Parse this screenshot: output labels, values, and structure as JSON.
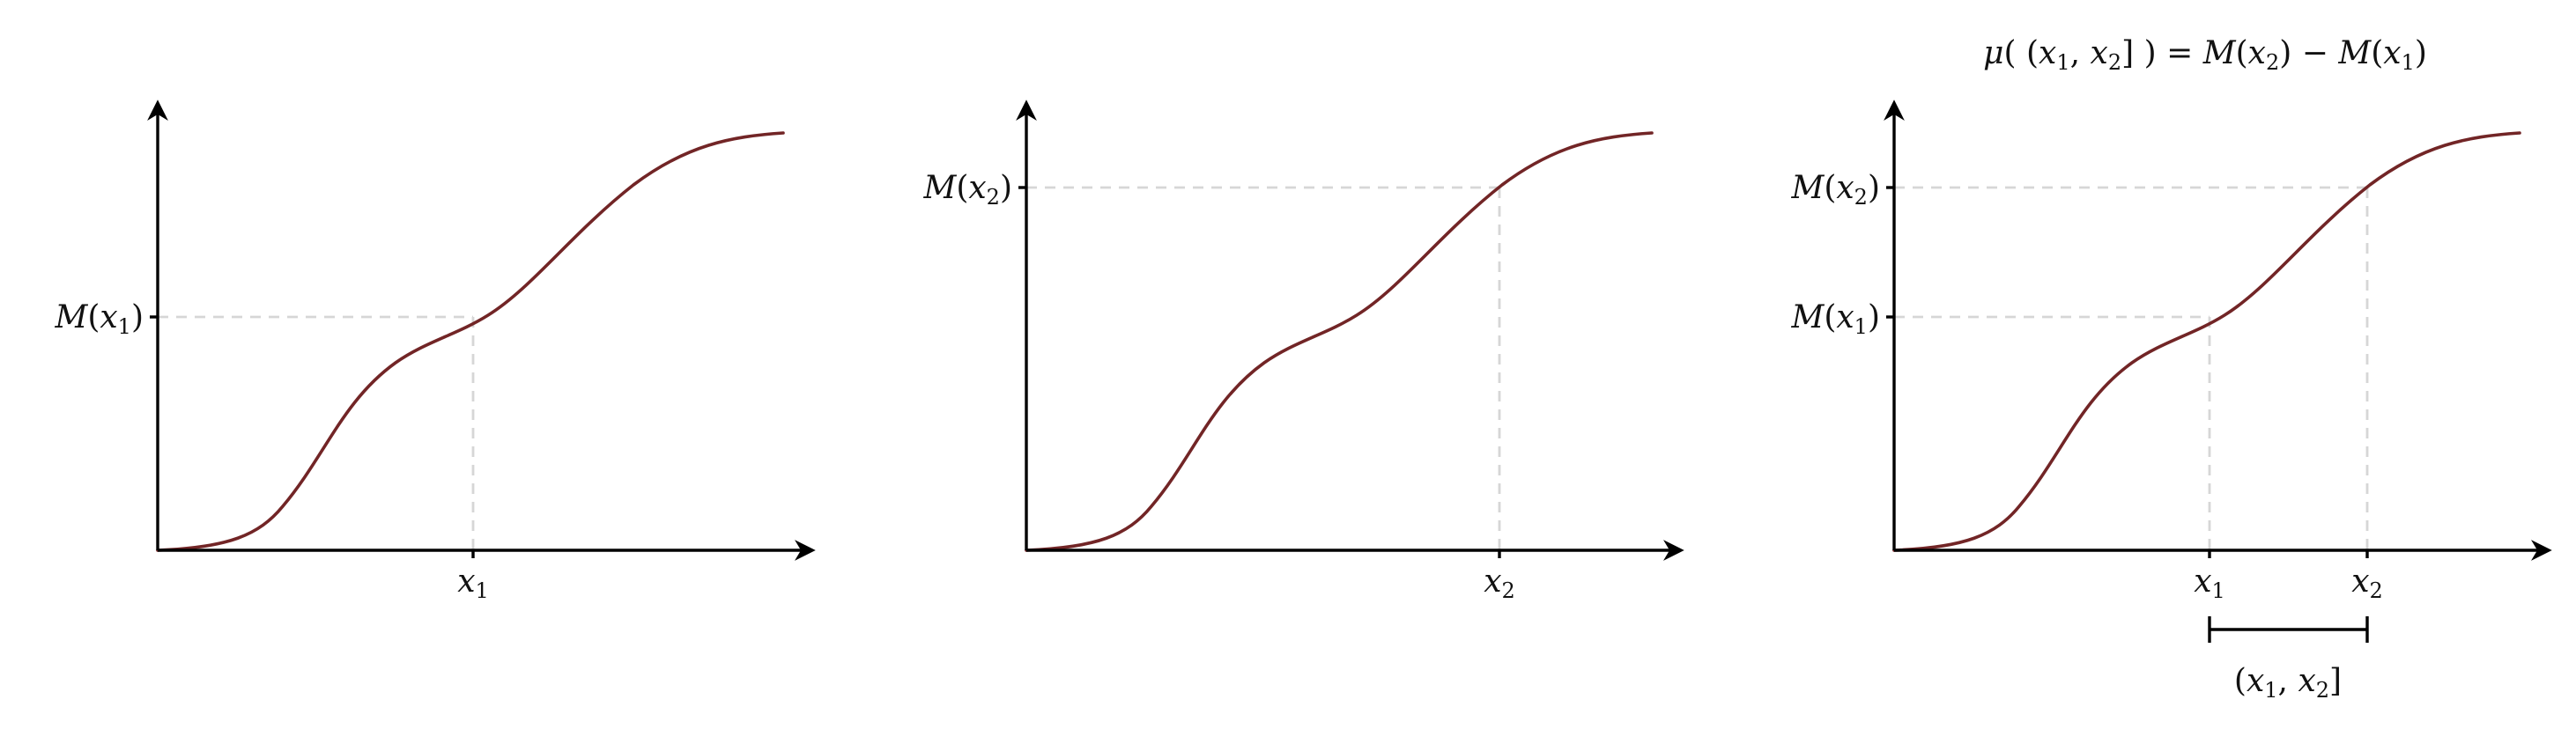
{
  "colors": {
    "curve": "#722526",
    "axis": "#000000",
    "guide": "#d6d6d6",
    "text": "#111111"
  },
  "icons": {
    "axis_arrow": "arrowhead"
  },
  "panels": [
    {
      "y_labels": [
        {
          "fn": "M",
          "sub": "1"
        }
      ],
      "x_labels": [
        {
          "var": "x",
          "sub": "1"
        }
      ]
    },
    {
      "y_labels": [
        {
          "fn": "M",
          "sub": "2"
        }
      ],
      "x_labels": [
        {
          "var": "x",
          "sub": "2"
        }
      ]
    },
    {
      "title": {
        "mu": "μ",
        "x": "x",
        "sub1": "1",
        "sub2": "2",
        "M": "M"
      },
      "y_labels": [
        {
          "fn": "M",
          "sub": "2"
        },
        {
          "fn": "M",
          "sub": "1"
        }
      ],
      "x_labels": [
        {
          "var": "x",
          "sub": "1"
        },
        {
          "var": "x",
          "sub": "2"
        }
      ],
      "interval_label": {
        "var": "x",
        "sub1": "1",
        "sub2": "2"
      }
    }
  ]
}
